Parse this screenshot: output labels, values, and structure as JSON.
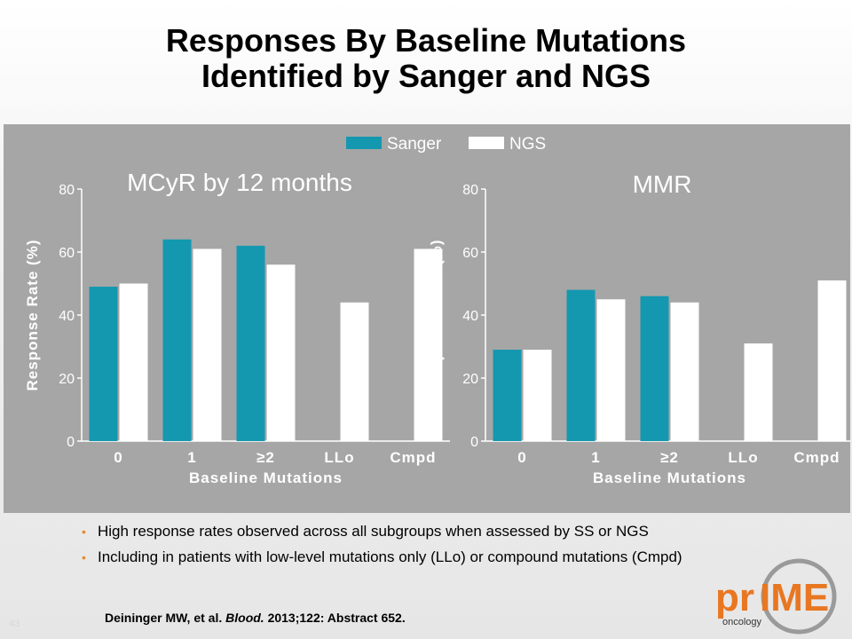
{
  "slide": {
    "title_line1": "Responses By Baseline Mutations",
    "title_line2": "Identified by Sanger and NGS",
    "bullets": [
      "High response rates observed across all subgroups when assessed by SS or NGS",
      "Including in patients with low-level mutations only (LLo) or compound mutations (Cmpd)"
    ],
    "citation_authors": "Deininger MW, et al.",
    "citation_journal": "Blood.",
    "citation_rest": "2013;122: Abstract 652.",
    "slide_number": "43",
    "logo": {
      "text_pr": "pr",
      "text_ime": "IME",
      "text_oncology": "oncology"
    }
  },
  "legend": [
    "Sanger",
    "NGS"
  ],
  "colors": {
    "sanger": "#1498b0",
    "ngs": "#ffffff",
    "panel": "#a6a6a6",
    "bullet": "#e38b2c",
    "logo_orange": "#e87722"
  },
  "chart_data": [
    {
      "type": "bar",
      "title": "MCyR by 12 months",
      "xlabel": "Baseline Mutations",
      "ylabel": "Response Rate (%)",
      "ylim": [
        0,
        80
      ],
      "yticks": [
        0,
        20,
        40,
        60,
        80
      ],
      "categories": [
        "0",
        "1",
        "≥2",
        "LLo",
        "Cmpd"
      ],
      "series": [
        {
          "name": "Sanger",
          "values": [
            49,
            64,
            62,
            null,
            null
          ]
        },
        {
          "name": "NGS",
          "values": [
            50,
            61,
            56,
            44,
            61
          ]
        }
      ]
    },
    {
      "type": "bar",
      "title": "MMR",
      "xlabel": "Baseline Mutations",
      "ylabel": "Response Rate (%)",
      "ylim": [
        0,
        80
      ],
      "yticks": [
        0,
        20,
        40,
        60,
        80
      ],
      "categories": [
        "0",
        "1",
        "≥2",
        "LLo",
        "Cmpd"
      ],
      "series": [
        {
          "name": "Sanger",
          "values": [
            29,
            48,
            46,
            null,
            null
          ]
        },
        {
          "name": "NGS",
          "values": [
            29,
            45,
            44,
            31,
            51
          ]
        }
      ]
    }
  ]
}
